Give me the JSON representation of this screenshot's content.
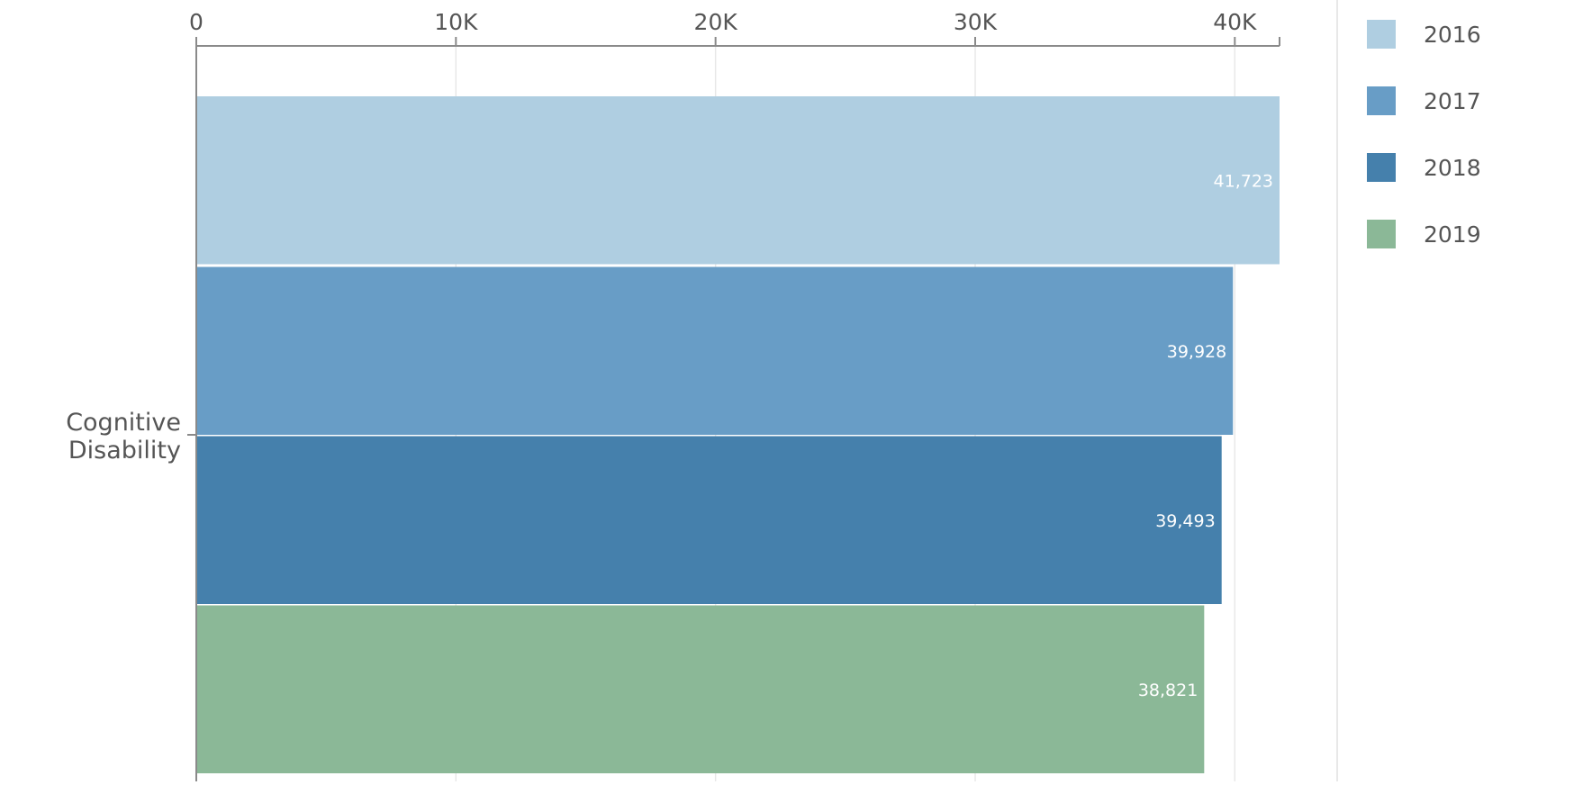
{
  "chart_data": {
    "type": "bar",
    "orientation": "horizontal",
    "categories": [
      "Cognitive Disability"
    ],
    "category_label_lines": [
      [
        "Cognitive",
        "Disability"
      ]
    ],
    "series": [
      {
        "name": "2016",
        "values": [
          41723
        ],
        "value_labels": [
          "41,723"
        ]
      },
      {
        "name": "2017",
        "values": [
          39928
        ],
        "value_labels": [
          "39,928"
        ]
      },
      {
        "name": "2018",
        "values": [
          39493
        ],
        "value_labels": [
          "39,493"
        ]
      },
      {
        "name": "2019",
        "values": [
          38821
        ],
        "value_labels": [
          "38,821"
        ]
      }
    ],
    "x_ticks": [
      0,
      10000,
      20000,
      30000,
      40000
    ],
    "x_tick_labels": [
      "0",
      "10K",
      "20K",
      "30K",
      "40K"
    ],
    "xlim": [
      0,
      41723
    ],
    "axis_position": "top",
    "grid": true,
    "legend_position": "right",
    "title": "",
    "xlabel": "",
    "ylabel": "",
    "colors": {
      "2016": "#afcee1",
      "2017": "#689dc6",
      "2018": "#4580ac",
      "2019": "#8bb897",
      "axis": "#8a8a8a",
      "grid": "#e8e8e8",
      "text": "#555555",
      "value_label": "#ffffff"
    }
  }
}
